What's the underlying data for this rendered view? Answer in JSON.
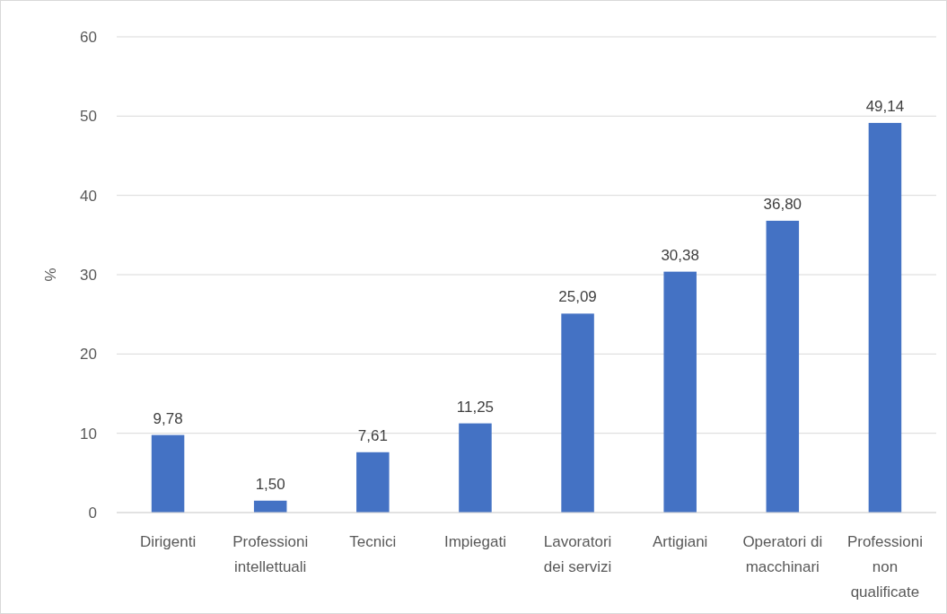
{
  "chart_data": {
    "type": "bar",
    "ylabel": "%",
    "categories": [
      "Dirigenti",
      "Professioni intellettuali",
      "Tecnici",
      "Impiegati",
      "Lavoratori dei servizi",
      "Artigiani",
      "Operatori di macchinari",
      "Professioni non qualificate"
    ],
    "values": [
      9.78,
      1.5,
      7.61,
      11.25,
      25.09,
      30.38,
      36.8,
      49.14
    ],
    "value_labels": [
      "9,78",
      "1,50",
      "7,61",
      "11,25",
      "25,09",
      "30,38",
      "36,80",
      "49,14"
    ],
    "color": "#4472c4",
    "ylim": [
      0,
      60
    ],
    "yticks": [
      0,
      10,
      20,
      30,
      40,
      50,
      60
    ],
    "grid": "y"
  }
}
